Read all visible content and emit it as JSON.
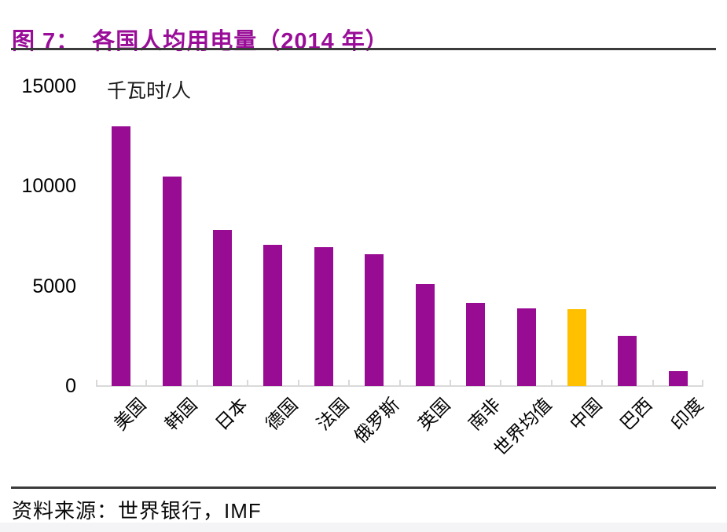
{
  "header": {
    "title_label": "图 7：",
    "title_text": "各国人均用电量（2014 年）",
    "title_color": "#990d98"
  },
  "footer": {
    "source_text": "资料来源：世界银行，IMF"
  },
  "chart_data": {
    "type": "bar",
    "title": "图 7：各国人均用电量（2014 年）",
    "unit_label": "千瓦时/人",
    "categories": [
      "美国",
      "韩国",
      "日本",
      "德国",
      "法国",
      "俄罗斯",
      "英国",
      "南非",
      "世界均值",
      "中国",
      "巴西",
      "印度"
    ],
    "values": [
      13000,
      10500,
      7800,
      7050,
      6950,
      6600,
      5100,
      4150,
      3900,
      3850,
      2500,
      750
    ],
    "colors": [
      "#970c92",
      "#970c92",
      "#970c92",
      "#970c92",
      "#970c92",
      "#970c92",
      "#970c92",
      "#970c92",
      "#970c92",
      "#ffc000",
      "#970c92",
      "#970c92"
    ],
    "default_bar_color": "#970c92",
    "highlight": {
      "category": "中国",
      "color": "#ffc000"
    },
    "xlabel": "",
    "ylabel": "千瓦时/人",
    "yticks": [
      0,
      5000,
      10000,
      15000
    ],
    "ylim": [
      0,
      15000
    ],
    "grid": false,
    "legend": false,
    "axis_color": "#d9d9d9",
    "source": "世界银行，IMF"
  }
}
